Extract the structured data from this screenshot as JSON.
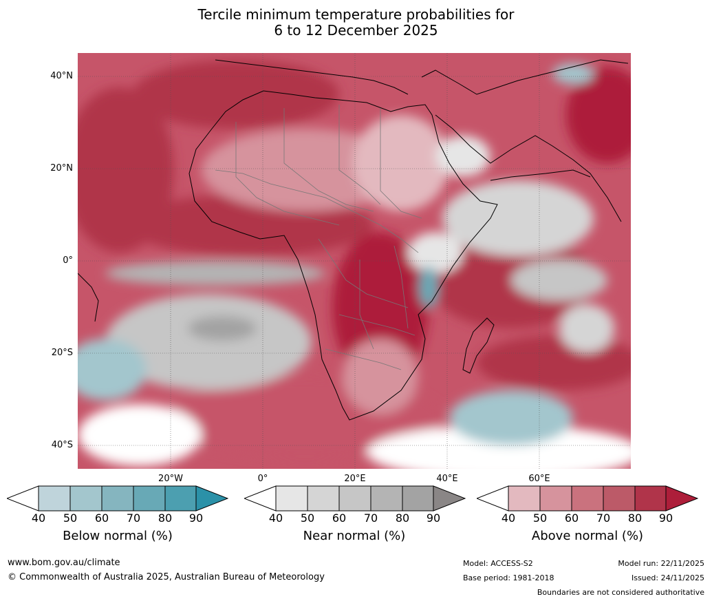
{
  "title": {
    "line1": "Tercile minimum temperature probabilities for",
    "line2": "6 to 12 December 2025"
  },
  "map": {
    "lat_labels": [
      "40°N",
      "20°N",
      "0°",
      "20°S",
      "40°S"
    ],
    "lon_labels": [
      "20°W",
      "0°",
      "20°E",
      "40°E",
      "60°E"
    ],
    "colors": {
      "below": [
        "#bfd4db",
        "#a3c6cd",
        "#85b5bf",
        "#68a9b6",
        "#4c9fb0",
        "#2b91a8"
      ],
      "near": [
        "#e6e6e6",
        "#d5d5d5",
        "#c6c6c6",
        "#b4b4b4",
        "#a3a3a3",
        "#8a8686"
      ],
      "above": [
        "#e3b9bf",
        "#d6939d",
        "#ca727e",
        "#bc5a68",
        "#b0344a",
        "#ad1e3a"
      ]
    }
  },
  "legend": {
    "ticks": [
      "40",
      "50",
      "60",
      "70",
      "80",
      "90"
    ],
    "below_title": "Below normal (%)",
    "near_title": "Near normal (%)",
    "above_title": "Above normal (%)"
  },
  "footer": {
    "website": "www.bom.gov.au/climate",
    "copyright": "© Commonwealth of Australia 2025, Australian Bureau of Meteorology",
    "model": "Model: ACCESS-S2",
    "base_period": "Base period: 1981-2018",
    "model_run": "Model run: 22/11/2025",
    "issued": "Issued: 24/11/2025",
    "disclaimer": "Boundaries are not considered authoritative"
  }
}
